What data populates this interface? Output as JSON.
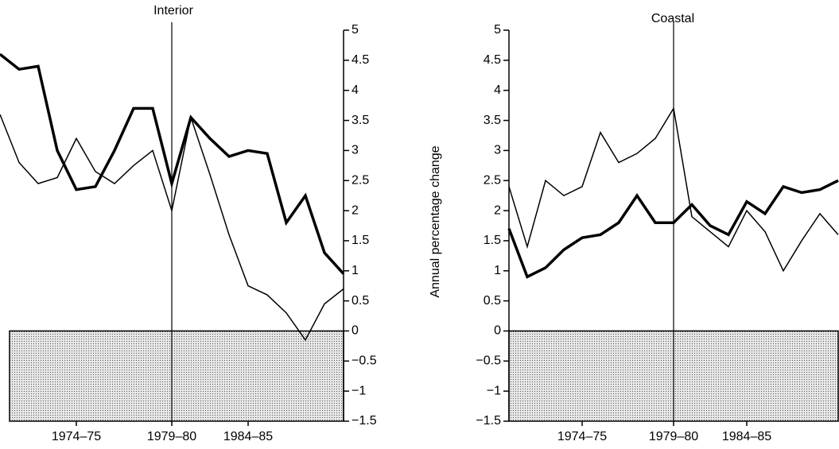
{
  "chart_data": [
    {
      "type": "line",
      "title": "Interior",
      "categories": [
        null,
        null,
        null,
        null,
        "1974–75",
        null,
        null,
        null,
        null,
        "1979–80",
        null,
        null,
        null,
        "1984–85",
        null,
        null,
        null,
        null,
        null
      ],
      "series": [
        {
          "color": "#000000",
          "linewidth": 1.5,
          "values": [
            3.6,
            2.8,
            2.45,
            2.55,
            3.2,
            2.65,
            2.45,
            2.75,
            3.0,
            2.0,
            3.55,
            2.6,
            1.6,
            0.75,
            0.6,
            0.3,
            -0.15,
            0.45,
            0.7
          ]
        },
        {
          "color": "#000000",
          "linewidth": 3.5,
          "values": [
            4.6,
            4.35,
            4.4,
            3.0,
            2.35,
            2.4,
            3.0,
            3.7,
            3.7,
            2.45,
            3.55,
            3.2,
            2.9,
            3.0,
            2.95,
            1.8,
            2.25,
            1.3,
            0.95
          ]
        }
      ],
      "ylim": [
        -1.5,
        5
      ],
      "yticks": [
        {
          "value": -1.5,
          "label": "−1.5"
        },
        {
          "value": -1,
          "label": "−1"
        },
        {
          "value": -0.5,
          "label": "−0.5"
        },
        0,
        0.5,
        1,
        1.5,
        2,
        2.5,
        3,
        3.5,
        4,
        4.5,
        5
      ],
      "y_axis_side": "right",
      "shaded_below_zero": true,
      "vline_at_category": 9
    },
    {
      "type": "line",
      "title": "Coastal",
      "ylabel": "Annual percentage change",
      "categories": [
        null,
        null,
        null,
        null,
        "1974–75",
        null,
        null,
        null,
        null,
        "1979–80",
        null,
        null,
        null,
        "1984–85",
        null,
        null,
        null,
        null,
        null
      ],
      "series": [
        {
          "color": "#000000",
          "linewidth": 1.5,
          "values": [
            2.4,
            1.4,
            2.5,
            2.25,
            2.4,
            3.3,
            2.8,
            2.95,
            3.2,
            3.7,
            1.9,
            1.65,
            1.4,
            2.0,
            1.65,
            1.0,
            1.5,
            1.95,
            1.6
          ]
        },
        {
          "color": "#000000",
          "linewidth": 3.5,
          "values": [
            1.7,
            0.9,
            1.05,
            1.35,
            1.55,
            1.6,
            1.8,
            2.25,
            1.8,
            1.8,
            2.1,
            1.75,
            1.6,
            2.15,
            1.95,
            2.4,
            2.3,
            2.35,
            2.5
          ]
        }
      ],
      "ylim": [
        -1.5,
        5
      ],
      "yticks": [
        {
          "value": -1.5,
          "label": "−1.5"
        },
        {
          "value": -1,
          "label": "−1"
        },
        {
          "value": -0.5,
          "label": "−0.5"
        },
        0,
        0.5,
        1,
        1.5,
        2,
        2.5,
        3,
        3.5,
        4,
        4.5,
        5
      ],
      "y_axis_side": "left",
      "shaded_below_zero": true,
      "vline_at_category": 9
    }
  ]
}
